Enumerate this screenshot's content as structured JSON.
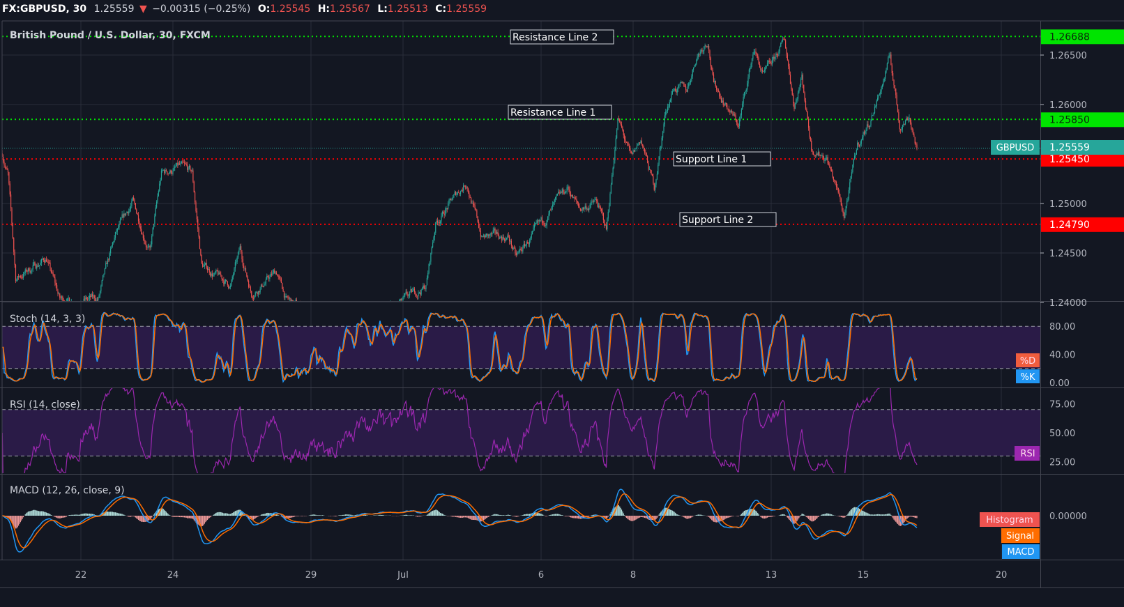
{
  "header": {
    "symbol": "FX:GBPUSD, 30",
    "last": "1.25559",
    "change": "−0.00315 (−0.25%)",
    "o_label": "O:",
    "o": "1.25545",
    "h_label": "H:",
    "h": "1.25567",
    "l_label": "L:",
    "l": "1.25513",
    "c_label": "C:",
    "c": "1.25559"
  },
  "main": {
    "legend": "British Pound / U.S. Dollar, 30, FXCM",
    "symbol_tag": "GBPUSD",
    "last_price": 1.25559,
    "last_price_label": "1.25559",
    "levels": [
      {
        "name": "Resistance Line 2",
        "price": 1.26688,
        "label": "1.26688",
        "color": "#00e400"
      },
      {
        "name": "Resistance Line 1",
        "price": 1.2585,
        "label": "1.25850",
        "color": "#00e400"
      },
      {
        "name": "Support Line 1",
        "price": 1.2545,
        "label": "1.25450",
        "color": "#ff0000"
      },
      {
        "name": "Support Line 2",
        "price": 1.2479,
        "label": "1.24790",
        "color": "#ff0000"
      }
    ],
    "price_ticks": [
      {
        "value": 1.265,
        "label": "1.26500"
      },
      {
        "value": 1.26,
        "label": "1.26000"
      },
      {
        "value": 1.25,
        "label": "1.25000"
      },
      {
        "value": 1.245,
        "label": "1.24500"
      },
      {
        "value": 1.24,
        "label": "1.24000"
      }
    ]
  },
  "stoch": {
    "legend": "Stoch (14, 3, 3)",
    "ticks": [
      {
        "value": 80,
        "label": "80.00"
      },
      {
        "value": 40,
        "label": "40.00"
      },
      {
        "value": 0,
        "label": "0.00"
      }
    ],
    "band": [
      20,
      80
    ],
    "d_tag": "%D",
    "k_tag": "%K"
  },
  "rsi": {
    "legend": "RSI (14, close)",
    "ticks": [
      {
        "value": 75,
        "label": "75.00"
      },
      {
        "value": 50,
        "label": "50.00"
      },
      {
        "value": 25,
        "label": "25.00"
      }
    ],
    "band": [
      30,
      70
    ],
    "tag": "RSI"
  },
  "macd": {
    "legend": "MACD (12, 26, close, 9)",
    "zero_label": "0.00000",
    "hist_tag": "Histogram",
    "signal_tag": "Signal",
    "macd_tag": "MACD"
  },
  "colors": {
    "background": "#131722",
    "grid": "#2a2e39",
    "up": "#26a69a",
    "down": "#ef5350",
    "k": "#2196f3",
    "d": "#ff6d00",
    "rsi": "#9c27b0",
    "band": "#2a1b47",
    "macd": "#2196f3",
    "signal": "#ff6d00",
    "hist_up": "#b2dfdb",
    "hist_down": "#ef9a9a"
  },
  "time_axis": [
    {
      "label": "22",
      "date": "Jun 22"
    },
    {
      "label": "24",
      "date": "Jun 24"
    },
    {
      "label": "29",
      "date": "Jun 29"
    },
    {
      "label": "Jul",
      "date": "Jul 1"
    },
    {
      "label": "6",
      "date": "Jul 6"
    },
    {
      "label": "8",
      "date": "Jul 8"
    },
    {
      "label": "13",
      "date": "Jul 13"
    },
    {
      "label": "15",
      "date": "Jul 15"
    },
    {
      "label": "20",
      "date": "Jul 20"
    }
  ],
  "chart_data": {
    "type": "candlestick",
    "symbol": "GBPUSD",
    "interval": "30",
    "ylim": [
      1.2385,
      1.2705
    ],
    "grid": true,
    "price_path": [
      {
        "t": "Jun 18 07:00",
        "p": 1.25507
      },
      {
        "t": "Jun 18 10:00",
        "p": 1.25296
      },
      {
        "t": "Jun 18 14:00",
        "p": 1.24239
      },
      {
        "t": "Jun 19 06:00",
        "p": 1.24451
      },
      {
        "t": "Jun 19 13:00",
        "p": 1.24028
      },
      {
        "t": "Jun 22 09:00",
        "p": 1.24028
      },
      {
        "t": "Jun 22 18:00",
        "p": 1.24662
      },
      {
        "t": "Jun 23 03:00",
        "p": 1.25014
      },
      {
        "t": "Jun 23 12:00",
        "p": 1.24521
      },
      {
        "t": "Jun 23 18:00",
        "p": 1.25296
      },
      {
        "t": "Jun 24 03:00",
        "p": 1.25366
      },
      {
        "t": "Jun 24 10:00",
        "p": 1.25296
      },
      {
        "t": "Jun 24 15:00",
        "p": 1.2438
      },
      {
        "t": "Jun 25 06:00",
        "p": 1.24169
      },
      {
        "t": "Jun 25 11:00",
        "p": 1.24521
      },
      {
        "t": "Jun 25 17:00",
        "p": 1.24099
      },
      {
        "t": "Jun 26 06:00",
        "p": 1.2431
      },
      {
        "t": "Jun 26 11:00",
        "p": 1.24028
      },
      {
        "t": "Jun 29 12:00",
        "p": 1.23746
      },
      {
        "t": "Jun 30 21:00",
        "p": 1.23958
      },
      {
        "t": "Jul 1 12:00",
        "p": 1.24169
      },
      {
        "t": "Jul 1 17:00",
        "p": 1.24803
      },
      {
        "t": "Jul 2 09:00",
        "p": 1.25225
      },
      {
        "t": "Jul 2 17:00",
        "p": 1.24662
      },
      {
        "t": "Jul 3 07:00",
        "p": 1.24662
      },
      {
        "t": "Jul 3 11:00",
        "p": 1.24451
      },
      {
        "t": "Jul 6 01:00",
        "p": 1.24803
      },
      {
        "t": "Jul 6 14:00",
        "p": 1.25155
      },
      {
        "t": "Jul 6 20:00",
        "p": 1.24944
      },
      {
        "t": "Jul 7 05:00",
        "p": 1.25014
      },
      {
        "t": "Jul 7 10:00",
        "p": 1.24732
      },
      {
        "t": "Jul 7 16:00",
        "p": 1.25859
      },
      {
        "t": "Jul 7 23:00",
        "p": 1.25437
      },
      {
        "t": "Jul 8 04:00",
        "p": 1.25648
      },
      {
        "t": "Jul 8 11:00",
        "p": 1.25155
      },
      {
        "t": "Jul 8 17:00",
        "p": 1.2593
      },
      {
        "t": "Jul 8 21:00",
        "p": 1.26176
      },
      {
        "t": "Jul 9 04:00",
        "p": 1.26141
      },
      {
        "t": "Jul 9 09:00",
        "p": 1.26493
      },
      {
        "t": "Jul 9 15:00",
        "p": 1.26669
      },
      {
        "t": "Jul 9 18:00",
        "p": 1.26211
      },
      {
        "t": "Jul 10 07:00",
        "p": 1.25789
      },
      {
        "t": "Jul 10 15:00",
        "p": 1.26563
      },
      {
        "t": "Jul 10 20:00",
        "p": 1.26282
      },
      {
        "t": "Jul 13 01:00",
        "p": 1.26423
      },
      {
        "t": "Jul 13 07:00",
        "p": 1.26648
      },
      {
        "t": "Jul 13 12:00",
        "p": 1.26
      },
      {
        "t": "Jul 13 16:00",
        "p": 1.26282
      },
      {
        "t": "Jul 13 21:00",
        "p": 1.25577
      },
      {
        "t": "Jul 14 05:00",
        "p": 1.25472
      },
      {
        "t": "Jul 14 10:00",
        "p": 1.25155
      },
      {
        "t": "Jul 14 14:00",
        "p": 1.24873
      },
      {
        "t": "Jul 14 21:00",
        "p": 1.25577
      },
      {
        "t": "Jul 15 04:00",
        "p": 1.25859
      },
      {
        "t": "Jul 15 10:00",
        "p": 1.26211
      },
      {
        "t": "Jul 15 14:00",
        "p": 1.26479
      },
      {
        "t": "Jul 15 19:00",
        "p": 1.25789
      },
      {
        "t": "Jul 16 00:00",
        "p": 1.25894
      },
      {
        "t": "Jul 16 04:00",
        "p": 1.25559
      }
    ]
  }
}
